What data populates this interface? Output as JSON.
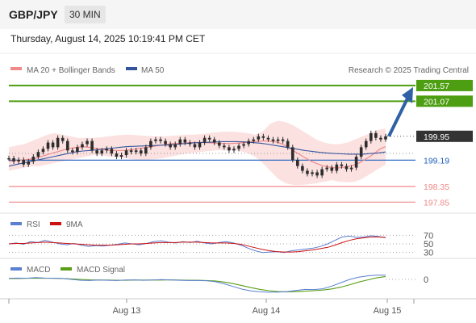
{
  "header": {
    "pair": "GBP/JPY",
    "timeframe": "30 MIN",
    "timestamp": "Thursday, August 14, 2025 10:19:41 PM CET"
  },
  "legend": {
    "ma20_bb": "MA 20 + Bollinger Bands",
    "ma50": "MA 50",
    "copyright": "Research © 2025 Trading Central",
    "rsi": "RSI",
    "rsi_ma": "9MA",
    "macd": "MACD",
    "macd_signal": "MACD Signal"
  },
  "colors": {
    "candle": "#2d2d2d",
    "bollinger_fill": "#fbd7d7",
    "ma20": "#f08a8a",
    "ma50": "#34559c",
    "resistance": "#4d9e12",
    "support_line": "#1b5fbf",
    "pivot_red": "#f08a8a",
    "forecast_arrow": "#2e61a5",
    "rsi_line": "#5b7fd1",
    "rsi_ma": "#cc1111",
    "macd_line": "#5b7fd1",
    "macd_signal": "#5a9e16"
  },
  "chart_data": {
    "type": "line",
    "title": "GBP/JPY",
    "timeframe": "30 MIN",
    "x_ticks": [
      "Aug 13",
      "Aug 14",
      "Aug 15"
    ],
    "ylim": [
      197.6,
      201.8
    ],
    "close": [
      199.25,
      199.15,
      199.2,
      199.05,
      199.15,
      199.3,
      199.45,
      199.55,
      199.75,
      199.6,
      199.9,
      199.8,
      199.5,
      199.45,
      199.6,
      199.7,
      199.8,
      199.5,
      199.4,
      199.5,
      199.55,
      199.4,
      199.3,
      199.35,
      199.5,
      199.45,
      199.5,
      199.4,
      199.6,
      199.8,
      199.85,
      199.8,
      199.7,
      199.6,
      199.7,
      199.85,
      199.75,
      199.7,
      199.6,
      199.75,
      199.9,
      199.85,
      199.75,
      199.65,
      199.6,
      199.5,
      199.55,
      199.65,
      199.7,
      199.8,
      199.85,
      199.95,
      199.9,
      199.85,
      199.8,
      199.85,
      199.8,
      199.6,
      199.2,
      199.0,
      198.85,
      198.75,
      198.8,
      198.7,
      198.9,
      198.95,
      198.85,
      199.05,
      199.0,
      198.9,
      198.95,
      199.3,
      199.6,
      199.8,
      200.05,
      199.9,
      199.85,
      199.95
    ],
    "ma20": [
      199.15,
      199.17,
      199.18,
      199.2,
      199.22,
      199.25,
      199.3,
      199.35,
      199.4,
      199.45,
      199.5,
      199.55,
      199.58,
      199.6,
      199.62,
      199.6,
      199.58,
      199.55,
      199.52,
      199.5,
      199.5,
      199.5,
      199.5,
      199.52,
      199.55,
      199.57,
      199.6,
      199.62,
      199.65,
      199.67,
      199.7,
      199.72,
      199.72,
      199.73,
      199.75,
      199.75,
      199.76,
      199.75,
      199.74,
      199.73,
      199.72,
      199.72,
      199.72,
      199.73,
      199.74,
      199.76,
      199.78,
      199.79,
      199.8,
      199.8,
      199.78,
      199.74,
      199.66,
      199.56,
      199.45,
      199.35,
      199.25,
      199.15,
      199.08,
      199.02,
      198.98,
      198.95,
      198.94,
      198.96,
      198.99,
      199.03,
      199.1,
      199.2,
      199.3,
      199.42,
      199.55,
      199.62
    ],
    "ma50": [
      199.0,
      199.05,
      199.1,
      199.15,
      199.2,
      199.25,
      199.3,
      199.35,
      199.4,
      199.45,
      199.48,
      199.5,
      199.52,
      199.55,
      199.57,
      199.6,
      199.62,
      199.63,
      199.64,
      199.65,
      199.66,
      199.67,
      199.68,
      199.7,
      199.72,
      199.74,
      199.75,
      199.76,
      199.77,
      199.78,
      199.78,
      199.78,
      199.77,
      199.75,
      199.73,
      199.7,
      199.66,
      199.62,
      199.58,
      199.54,
      199.5,
      199.47,
      199.44,
      199.42,
      199.4,
      199.39,
      199.38,
      199.38,
      199.38,
      199.4,
      199.42,
      199.45
    ],
    "bollinger_upper": [
      199.6,
      199.65,
      199.7,
      199.8,
      199.9,
      200.0,
      200.05,
      200.0,
      199.95,
      199.9,
      199.9,
      199.9,
      199.92,
      199.95,
      199.98,
      200.0,
      200.0,
      199.98,
      199.96,
      199.95,
      199.95,
      199.96,
      199.98,
      200.0,
      200.0,
      200.02,
      200.05,
      200.08,
      200.1,
      200.1,
      200.08,
      200.05,
      200.0,
      200.1,
      200.35,
      200.45,
      200.4,
      200.3,
      200.15,
      200.0,
      199.85,
      199.75,
      199.7,
      199.7,
      199.75,
      199.85,
      199.95,
      200.05,
      200.15,
      200.2
    ],
    "bollinger_lower": [
      198.85,
      198.9,
      198.95,
      199.0,
      199.0,
      199.05,
      199.1,
      199.15,
      199.2,
      199.25,
      199.3,
      199.35,
      199.35,
      199.3,
      199.28,
      199.25,
      199.22,
      199.2,
      199.2,
      199.22,
      199.25,
      199.3,
      199.35,
      199.4,
      199.42,
      199.45,
      199.48,
      199.5,
      199.5,
      199.5,
      199.48,
      199.42,
      199.3,
      199.1,
      198.85,
      198.6,
      198.45,
      198.4,
      198.4,
      198.42,
      198.45,
      198.5,
      198.55,
      198.5,
      198.48,
      198.5,
      198.6,
      198.75,
      198.9,
      199.05
    ],
    "levels": {
      "resistance_2": 201.57,
      "resistance_1": 201.07,
      "last": 199.95,
      "pivot": 199.19,
      "support_1": 198.35,
      "support_2": 197.85
    },
    "level_labels": [
      "201.57",
      "201.07",
      "199.95",
      "199.19",
      "198.35",
      "197.85"
    ],
    "forecast_target": 201.57,
    "rsi": {
      "ylim": [
        20,
        80
      ],
      "ticks": [
        "70",
        "50",
        "30"
      ],
      "values": [
        50,
        52,
        49,
        55,
        53,
        58,
        54,
        50,
        48,
        51,
        47,
        44,
        46,
        45,
        47,
        49,
        52,
        50,
        48,
        51,
        55,
        57,
        54,
        52,
        55,
        53,
        56,
        52,
        50,
        53,
        55,
        52,
        47,
        40,
        34,
        30,
        31,
        32,
        30,
        34,
        36,
        38,
        40,
        44,
        50,
        58,
        66,
        68,
        65,
        66,
        69,
        67,
        64
      ],
      "ma": [
        50,
        51,
        51,
        52,
        53,
        54,
        53,
        52,
        51,
        50,
        49,
        48,
        47,
        47,
        47,
        48,
        49,
        50,
        50,
        51,
        52,
        53,
        53,
        53,
        54,
        54,
        54,
        53,
        52,
        52,
        52,
        51,
        49,
        45,
        41,
        37,
        34,
        32,
        31,
        31,
        32,
        34,
        36,
        39,
        42,
        47,
        53,
        58,
        62,
        64,
        66,
        66,
        65
      ]
    },
    "macd": {
      "ylim": [
        -0.8,
        0.4
      ],
      "ticks": [
        "0"
      ],
      "macd": [
        0.05,
        0.06,
        0.05,
        0.08,
        0.06,
        0.05,
        0.04,
        0.0,
        -0.04,
        -0.05,
        -0.03,
        -0.04,
        -0.05,
        -0.03,
        -0.02,
        -0.04,
        -0.03,
        -0.01,
        -0.02,
        -0.04,
        -0.05,
        -0.05,
        -0.06,
        -0.1,
        -0.2,
        -0.32,
        -0.44,
        -0.52,
        -0.56,
        -0.58,
        -0.57,
        -0.55,
        -0.5,
        -0.45,
        -0.46,
        -0.42,
        -0.3,
        -0.15,
        0.0,
        0.1,
        0.16,
        0.19,
        0.19
      ],
      "signal": [
        0.04,
        0.04,
        0.05,
        0.05,
        0.05,
        0.05,
        0.04,
        0.02,
        0.0,
        -0.02,
        -0.03,
        -0.03,
        -0.04,
        -0.04,
        -0.03,
        -0.03,
        -0.03,
        -0.03,
        -0.02,
        -0.03,
        -0.04,
        -0.04,
        -0.05,
        -0.07,
        -0.12,
        -0.19,
        -0.28,
        -0.37,
        -0.45,
        -0.51,
        -0.55,
        -0.56,
        -0.55,
        -0.53,
        -0.51,
        -0.48,
        -0.43,
        -0.35,
        -0.24,
        -0.12,
        -0.02,
        0.07,
        0.13
      ]
    }
  }
}
